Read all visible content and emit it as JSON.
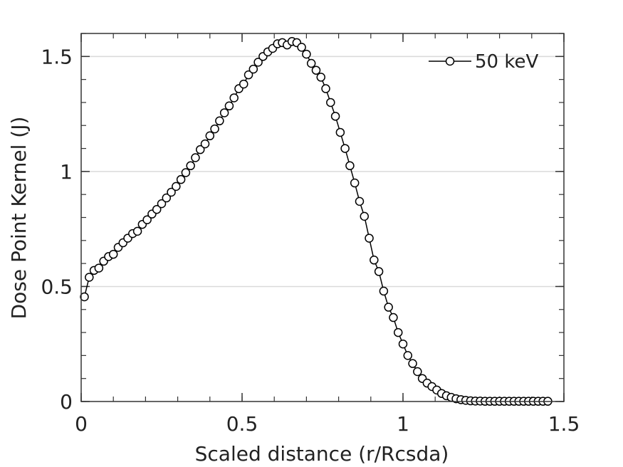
{
  "chart_data": {
    "type": "line",
    "xlabel": "Scaled distance (r/Rcsda)",
    "ylabel": "Dose Point Kernel (J)",
    "xlim": [
      0,
      1.5
    ],
    "ylim": [
      0,
      1.6
    ],
    "grid": "horizontal",
    "legend_position": "top-right",
    "x_ticks": [
      {
        "value": 0,
        "label": "0"
      },
      {
        "value": 0.5,
        "label": "0.5"
      },
      {
        "value": 1,
        "label": "1"
      },
      {
        "value": 1.5,
        "label": "1.5"
      }
    ],
    "y_ticks": [
      {
        "value": 0,
        "label": "0"
      },
      {
        "value": 0.5,
        "label": "0.5"
      },
      {
        "value": 1,
        "label": "1"
      },
      {
        "value": 1.5,
        "label": "1.5"
      }
    ],
    "series": [
      {
        "name": "50 keV",
        "color": "#000000",
        "marker": "open-circle",
        "x": [
          0.01,
          0.025,
          0.04,
          0.055,
          0.07,
          0.085,
          0.1,
          0.115,
          0.13,
          0.145,
          0.16,
          0.175,
          0.19,
          0.205,
          0.22,
          0.235,
          0.25,
          0.265,
          0.28,
          0.295,
          0.31,
          0.325,
          0.34,
          0.355,
          0.37,
          0.385,
          0.4,
          0.415,
          0.43,
          0.445,
          0.46,
          0.475,
          0.49,
          0.505,
          0.52,
          0.535,
          0.55,
          0.565,
          0.58,
          0.595,
          0.61,
          0.625,
          0.64,
          0.655,
          0.67,
          0.685,
          0.7,
          0.715,
          0.73,
          0.745,
          0.76,
          0.775,
          0.79,
          0.805,
          0.82,
          0.835,
          0.85,
          0.865,
          0.88,
          0.895,
          0.91,
          0.925,
          0.94,
          0.955,
          0.97,
          0.985,
          1.0,
          1.015,
          1.03,
          1.045,
          1.06,
          1.075,
          1.09,
          1.105,
          1.12,
          1.135,
          1.15,
          1.165,
          1.18,
          1.195,
          1.21,
          1.225,
          1.24,
          1.255,
          1.27,
          1.285,
          1.3,
          1.315,
          1.33,
          1.345,
          1.36,
          1.375,
          1.39,
          1.405,
          1.42,
          1.435,
          1.45
        ],
        "values": [
          0.455,
          0.54,
          0.57,
          0.58,
          0.61,
          0.63,
          0.64,
          0.67,
          0.69,
          0.71,
          0.73,
          0.74,
          0.77,
          0.79,
          0.815,
          0.835,
          0.86,
          0.885,
          0.91,
          0.935,
          0.965,
          0.995,
          1.025,
          1.06,
          1.095,
          1.12,
          1.155,
          1.185,
          1.22,
          1.255,
          1.285,
          1.32,
          1.36,
          1.38,
          1.42,
          1.445,
          1.475,
          1.5,
          1.52,
          1.535,
          1.555,
          1.56,
          1.55,
          1.565,
          1.56,
          1.54,
          1.51,
          1.47,
          1.44,
          1.41,
          1.36,
          1.3,
          1.24,
          1.17,
          1.1,
          1.025,
          0.95,
          0.87,
          0.805,
          0.71,
          0.615,
          0.565,
          0.48,
          0.41,
          0.365,
          0.3,
          0.25,
          0.2,
          0.165,
          0.13,
          0.1,
          0.08,
          0.065,
          0.05,
          0.035,
          0.025,
          0.018,
          0.012,
          0.008,
          0.005,
          0.003,
          0.002,
          0.002,
          0.001,
          0.001,
          0.001,
          0.001,
          0.001,
          0.001,
          0.001,
          0.001,
          0.001,
          0.001,
          0.001,
          0.001,
          0.001,
          0.001
        ]
      }
    ]
  }
}
